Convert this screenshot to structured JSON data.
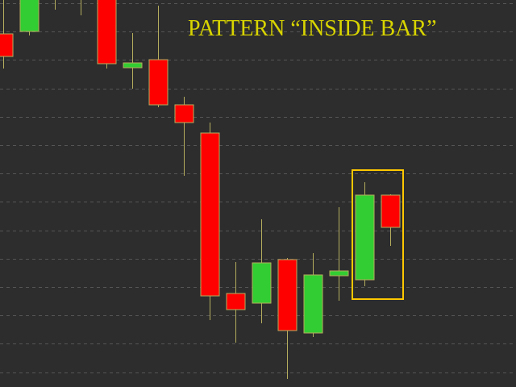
{
  "chart_data": {
    "type": "candlestick",
    "title": "PATTERN “INSIDE BAR”",
    "xlabel": "",
    "ylabel": "",
    "ylim": [
      0,
      48
    ],
    "grid": true,
    "colors": {
      "background": "#2d2d2d",
      "bull": "#32cd32",
      "bear": "#ff0000",
      "wick": "#b5ad5e",
      "grid": "#555555",
      "highlight": "#ffc800",
      "title": "#d8d400"
    },
    "candles": [
      {
        "open": 43.8,
        "high": 48.0,
        "low": 39.5,
        "close": 41.0
      },
      {
        "open": 44.1,
        "high": 48.5,
        "low": 43.6,
        "close": 48.4
      },
      {
        "open": 49.5,
        "high": 50.0,
        "low": 46.8,
        "close": 49.0
      },
      {
        "open": 49.5,
        "high": 50.0,
        "low": 46.1,
        "close": 49.0
      },
      {
        "open": 49.0,
        "high": 50.0,
        "low": 39.5,
        "close": 40.1
      },
      {
        "open": 39.6,
        "high": 43.9,
        "low": 37.0,
        "close": 40.2
      },
      {
        "open": 40.6,
        "high": 47.3,
        "low": 34.7,
        "close": 35.0
      },
      {
        "open": 35.0,
        "high": 36.0,
        "low": 26.2,
        "close": 32.8
      },
      {
        "open": 31.5,
        "high": 32.8,
        "low": 8.3,
        "close": 11.3
      },
      {
        "open": 11.6,
        "high": 15.5,
        "low": 5.5,
        "close": 9.6
      },
      {
        "open": 10.4,
        "high": 20.8,
        "low": 7.9,
        "close": 15.4
      },
      {
        "open": 15.8,
        "high": 16.0,
        "low": 1.0,
        "close": 7.0
      },
      {
        "open": 6.7,
        "high": 16.6,
        "low": 6.2,
        "close": 13.9
      },
      {
        "open": 13.8,
        "high": 22.3,
        "low": 10.7,
        "close": 14.4
      },
      {
        "open": 13.3,
        "high": 25.4,
        "low": 12.5,
        "close": 23.8
      },
      {
        "open": 23.8,
        "high": 23.9,
        "low": 17.5,
        "close": 19.8
      }
    ],
    "highlight_candles": [
      14,
      15
    ]
  }
}
